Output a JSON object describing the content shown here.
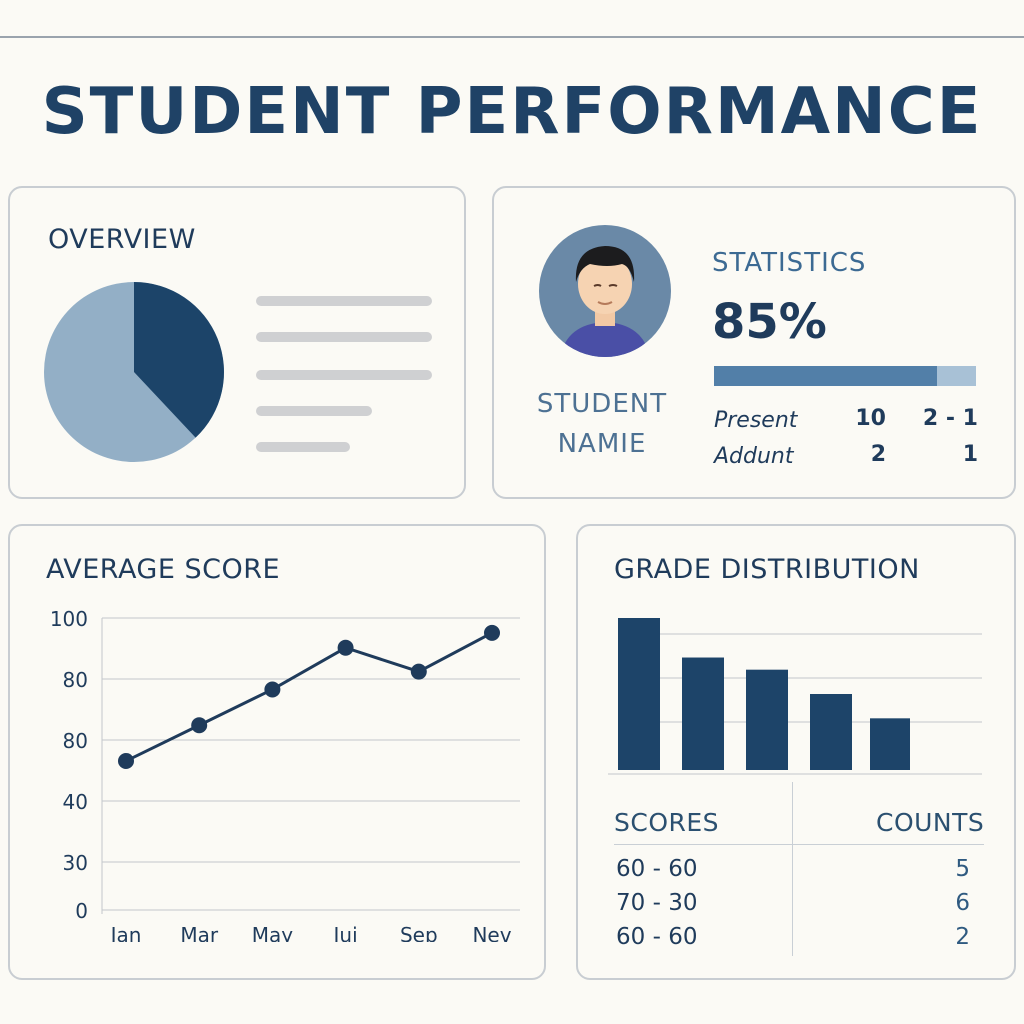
{
  "page": {
    "title": "STUDENT PERFORMANCE"
  },
  "overview": {
    "title": "OVERVIEW",
    "pie": {
      "dark_fraction": 0.38,
      "colors": {
        "dark": "#1c4469",
        "light": "#93afc6"
      }
    }
  },
  "stats": {
    "student_name_line1": "STUDENT",
    "student_name_line2": "NAMIE",
    "title": "STATISTICS",
    "percent_label": "85%",
    "progress": 0.85,
    "rows": [
      {
        "label": "Present",
        "v1": "10",
        "v2": "2 - 1"
      },
      {
        "label": "Addunt",
        "v1": "2",
        "v2": "1"
      }
    ]
  },
  "average_score": {
    "title": "AVERAGE SCORE"
  },
  "grade_distribution": {
    "title": "GRADE DISTRIBUTION",
    "table": {
      "header_scores": "SCORES",
      "header_counts": "COUNTS",
      "rows": [
        {
          "score": "60 - 60",
          "count": "5"
        },
        {
          "score": "70 - 30",
          "count": "6"
        },
        {
          "score": "60 - 60",
          "count": "2"
        }
      ]
    }
  },
  "chart_data": [
    {
      "type": "line",
      "title": "AVERAGE SCORE",
      "categories": [
        "Jan",
        "Mar",
        "May",
        "Jui",
        "Sep",
        "Nev"
      ],
      "y_tick_labels": [
        "100",
        "80",
        "80",
        "40",
        "30",
        "0"
      ],
      "values": [
        50,
        62,
        74,
        88,
        80,
        93
      ],
      "ylim": [
        0,
        100
      ],
      "grid": true,
      "color": "#1f3b5b"
    },
    {
      "type": "bar",
      "title": "GRADE DISTRIBUTION",
      "values": [
        100,
        74,
        66,
        50,
        34
      ],
      "grid": true,
      "color": "#1d4469"
    }
  ]
}
